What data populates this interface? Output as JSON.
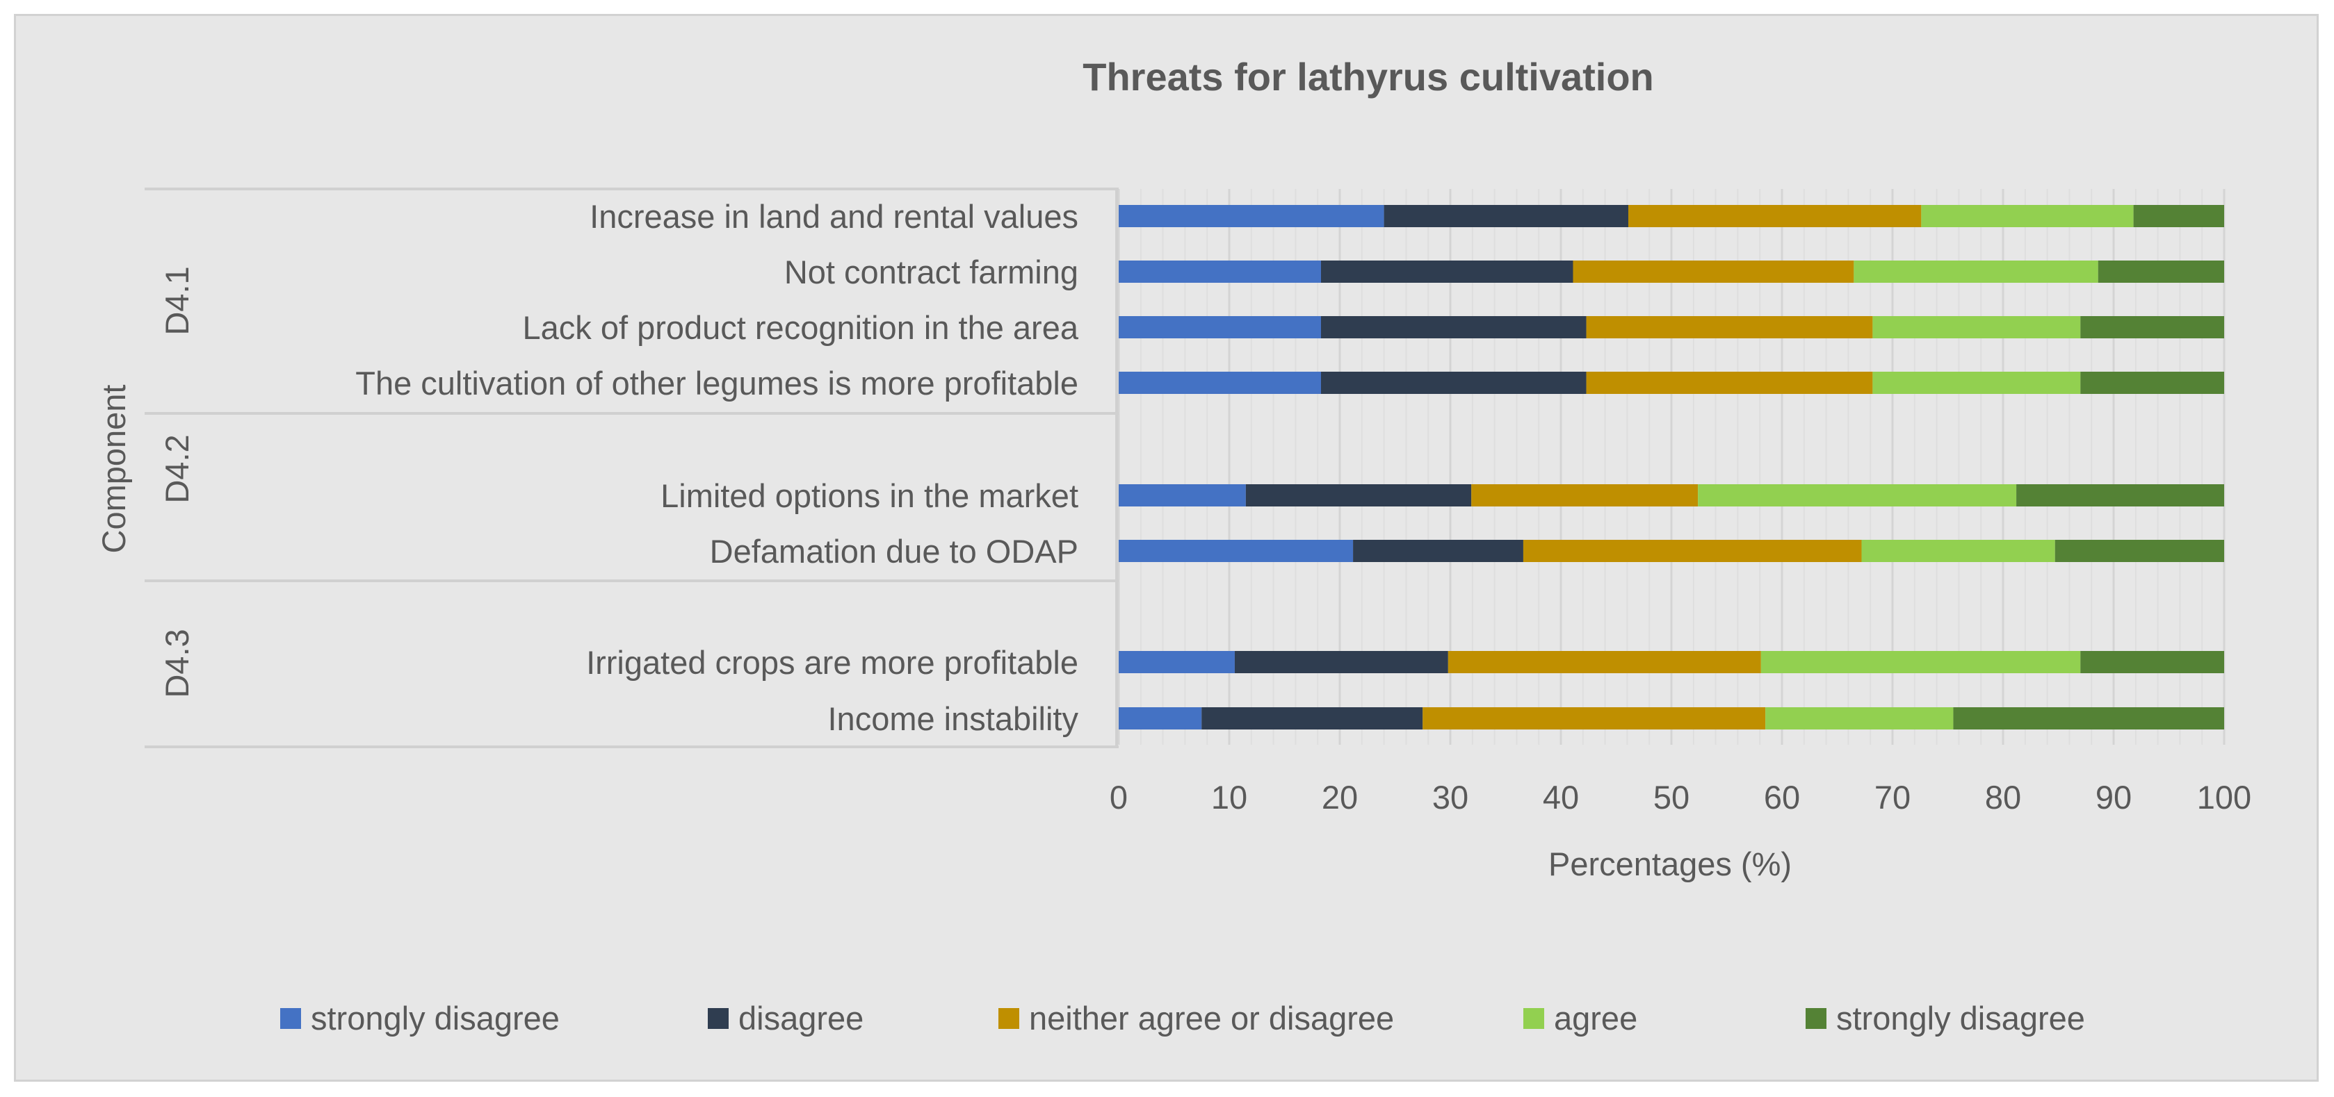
{
  "chart_data": {
    "type": "bar",
    "orientation": "horizontal",
    "stacked": true,
    "title": "Threats for lathyrus cultivation",
    "xlabel": "Percentages (%)",
    "ylabel": "Component",
    "xlim": [
      0,
      100
    ],
    "xticks": [
      "0",
      "10",
      "20",
      "30",
      "40",
      "50",
      "60",
      "70",
      "80",
      "90",
      "100"
    ],
    "grid": true,
    "legend_position": "bottom",
    "groups": [
      {
        "label": "D4.1",
        "categories": [
          "Increase in land and rental values",
          "Not contract farming",
          "Lack of product recognition in the area",
          "The cultivation of other legumes is more profitable"
        ]
      },
      {
        "label": "D4.2",
        "categories": [
          "Limited options in the market",
          "Defamation due to ODAP"
        ]
      },
      {
        "label": "D4.3",
        "categories": [
          "Irrigated crops are more profitable",
          "Income instability"
        ]
      }
    ],
    "categories": [
      "Increase in land and rental values",
      "Not contract farming",
      "Lack of product recognition in the area",
      "The cultivation of other legumes is more profitable",
      "Limited options in the market",
      "Defamation due to ODAP",
      "Irrigated crops are more profitable",
      "Income instability"
    ],
    "series": [
      {
        "name": "strongly disagree",
        "color": "#4472c4",
        "values": [
          24,
          18.3,
          18.3,
          18.3,
          11.5,
          21.2,
          10.5,
          7.5
        ]
      },
      {
        "name": "disagree",
        "color": "#2f3d50",
        "values": [
          22.1,
          22.8,
          24,
          24,
          20.4,
          15.4,
          19.3,
          20
        ]
      },
      {
        "name": "neither agree or disagree",
        "color": "#bf8f00",
        "values": [
          26.5,
          25.4,
          25.9,
          25.9,
          20.5,
          30.6,
          28.3,
          31
        ]
      },
      {
        "name": "agree",
        "color": "#92d050",
        "values": [
          19.2,
          22.1,
          18.8,
          18.8,
          28.8,
          17.5,
          28.9,
          17
        ]
      },
      {
        "name": "strongly disagree",
        "color": "#548235",
        "values": [
          8.2,
          11.4,
          13,
          13,
          18.8,
          15.3,
          13,
          24.5
        ]
      }
    ]
  }
}
